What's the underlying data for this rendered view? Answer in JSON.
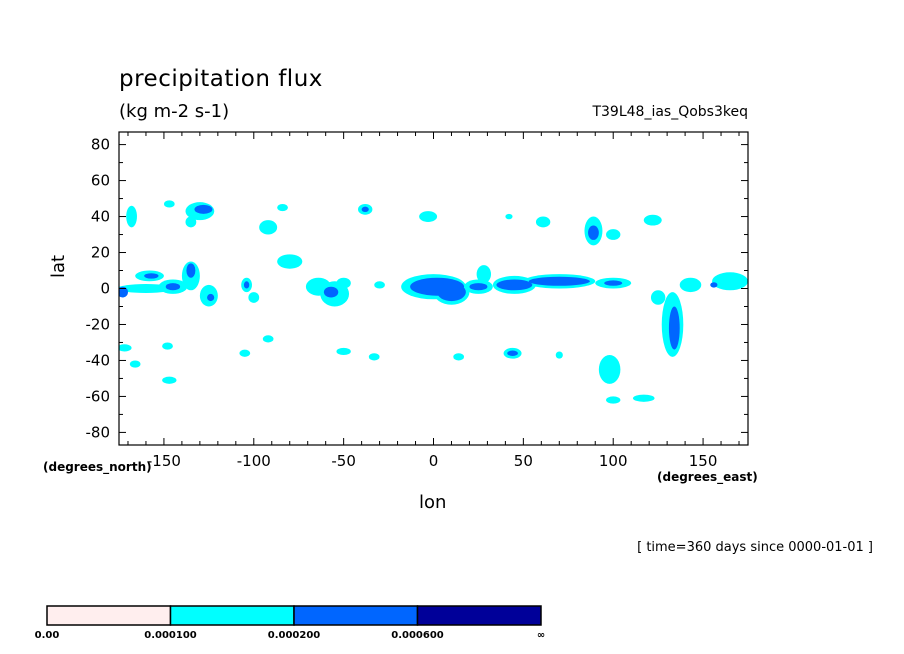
{
  "header": {
    "title": "precipitation flux",
    "units": "(kg m-2 s-1)",
    "model": "T39L48_ias_Qobs3keq",
    "time_note": "[ time=360 days since 0000-01-01 ]"
  },
  "chart_data": {
    "type": "heatmap",
    "title": "precipitation flux",
    "xlabel": "lon",
    "ylabel": "lat",
    "x_unit_label": "(degrees_east)",
    "y_unit_label": "(degrees_north)",
    "xlim": [
      -175,
      175
    ],
    "ylim": [
      -87,
      87
    ],
    "xticks": [
      -150,
      -100,
      -50,
      0,
      50,
      100,
      150
    ],
    "xticklabels": [
      "-150",
      "-100",
      "-50",
      "0",
      "50",
      "100",
      "150"
    ],
    "yticks": [
      80,
      60,
      40,
      20,
      0,
      -20,
      -40,
      -60,
      -80
    ],
    "yticklabels": [
      "80",
      "60",
      "40",
      "20",
      "0",
      "-20",
      "-40",
      "-60",
      "-80"
    ],
    "grid": false,
    "colorbar": {
      "levels": [
        "0.00",
        "0.000100",
        "0.000200",
        "0.000600",
        "∞"
      ],
      "colors": [
        "#ffeeee",
        "#00ffff",
        "#0066ff",
        "#000099"
      ]
    },
    "regions": [
      {
        "level": 1,
        "lon": -168,
        "lat": 40,
        "rx": 3,
        "ry": 6
      },
      {
        "level": 1,
        "lon": -147,
        "lat": 47,
        "rx": 3,
        "ry": 2
      },
      {
        "level": 1,
        "lon": -130,
        "lat": 43,
        "rx": 8,
        "ry": 5
      },
      {
        "level": 2,
        "lon": -128,
        "lat": 44,
        "rx": 5,
        "ry": 2.5
      },
      {
        "level": 1,
        "lon": -135,
        "lat": 37,
        "rx": 3,
        "ry": 3
      },
      {
        "level": 1,
        "lon": -92,
        "lat": 34,
        "rx": 5,
        "ry": 4
      },
      {
        "level": 1,
        "lon": -84,
        "lat": 45,
        "rx": 3,
        "ry": 2
      },
      {
        "level": 1,
        "lon": -38,
        "lat": 44,
        "rx": 4,
        "ry": 3
      },
      {
        "level": 2,
        "lon": -38,
        "lat": 44,
        "rx": 2,
        "ry": 1.5
      },
      {
        "level": 1,
        "lon": -3,
        "lat": 40,
        "rx": 5,
        "ry": 3
      },
      {
        "level": 1,
        "lon": 42,
        "lat": 40,
        "rx": 2,
        "ry": 1.5
      },
      {
        "level": 1,
        "lon": 61,
        "lat": 37,
        "rx": 4,
        "ry": 3
      },
      {
        "level": 1,
        "lon": 89,
        "lat": 32,
        "rx": 5,
        "ry": 8
      },
      {
        "level": 2,
        "lon": 89,
        "lat": 31,
        "rx": 3,
        "ry": 4
      },
      {
        "level": 1,
        "lon": 100,
        "lat": 30,
        "rx": 4,
        "ry": 3
      },
      {
        "level": 1,
        "lon": 122,
        "lat": 38,
        "rx": 5,
        "ry": 3
      },
      {
        "level": 1,
        "lon": -80,
        "lat": 15,
        "rx": 7,
        "ry": 4
      },
      {
        "level": 1,
        "lon": -158,
        "lat": 7,
        "rx": 8,
        "ry": 3
      },
      {
        "level": 2,
        "lon": -157,
        "lat": 7,
        "rx": 4,
        "ry": 1.5
      },
      {
        "level": 1,
        "lon": -160,
        "lat": 0,
        "rx": 16,
        "ry": 2.5
      },
      {
        "level": 2,
        "lon": -173,
        "lat": -2,
        "rx": 3,
        "ry": 3
      },
      {
        "level": 1,
        "lon": -145,
        "lat": 1,
        "rx": 8,
        "ry": 4
      },
      {
        "level": 2,
        "lon": -145,
        "lat": 1,
        "rx": 4,
        "ry": 2
      },
      {
        "level": 1,
        "lon": -135,
        "lat": 7,
        "rx": 5,
        "ry": 8
      },
      {
        "level": 2,
        "lon": -135,
        "lat": 10,
        "rx": 2.5,
        "ry": 4
      },
      {
        "level": 1,
        "lon": -125,
        "lat": -4,
        "rx": 5,
        "ry": 6
      },
      {
        "level": 2,
        "lon": -124,
        "lat": -5,
        "rx": 2,
        "ry": 2
      },
      {
        "level": 1,
        "lon": -104,
        "lat": 2,
        "rx": 3,
        "ry": 4
      },
      {
        "level": 2,
        "lon": -104,
        "lat": 2,
        "rx": 1.5,
        "ry": 2
      },
      {
        "level": 1,
        "lon": -100,
        "lat": -5,
        "rx": 3,
        "ry": 3
      },
      {
        "level": 1,
        "lon": -64,
        "lat": 1,
        "rx": 7,
        "ry": 5
      },
      {
        "level": 1,
        "lon": -55,
        "lat": -3,
        "rx": 8,
        "ry": 7
      },
      {
        "level": 2,
        "lon": -57,
        "lat": -2,
        "rx": 4,
        "ry": 3
      },
      {
        "level": 1,
        "lon": -50,
        "lat": 3,
        "rx": 4,
        "ry": 3
      },
      {
        "level": 1,
        "lon": -30,
        "lat": 2,
        "rx": 3,
        "ry": 2
      },
      {
        "level": 1,
        "lon": 0,
        "lat": 1,
        "rx": 18,
        "ry": 7
      },
      {
        "level": 2,
        "lon": 2,
        "lat": 1,
        "rx": 15,
        "ry": 5
      },
      {
        "level": 1,
        "lon": 10,
        "lat": -2,
        "rx": 10,
        "ry": 7
      },
      {
        "level": 2,
        "lon": 10,
        "lat": -2,
        "rx": 8,
        "ry": 5
      },
      {
        "level": 1,
        "lon": 28,
        "lat": 8,
        "rx": 4,
        "ry": 5
      },
      {
        "level": 1,
        "lon": 25,
        "lat": 1,
        "rx": 8,
        "ry": 4
      },
      {
        "level": 2,
        "lon": 25,
        "lat": 1,
        "rx": 5,
        "ry": 2
      },
      {
        "level": 1,
        "lon": 45,
        "lat": 2,
        "rx": 12,
        "ry": 5
      },
      {
        "level": 2,
        "lon": 45,
        "lat": 2,
        "rx": 10,
        "ry": 3
      },
      {
        "level": 1,
        "lon": 70,
        "lat": 4,
        "rx": 20,
        "ry": 4
      },
      {
        "level": 2,
        "lon": 70,
        "lat": 4,
        "rx": 17,
        "ry": 2.5
      },
      {
        "level": 1,
        "lon": 100,
        "lat": 3,
        "rx": 10,
        "ry": 3
      },
      {
        "level": 2,
        "lon": 100,
        "lat": 3,
        "rx": 5,
        "ry": 1.5
      },
      {
        "level": 1,
        "lon": 125,
        "lat": -5,
        "rx": 4,
        "ry": 4
      },
      {
        "level": 1,
        "lon": 133,
        "lat": -20,
        "rx": 6,
        "ry": 18
      },
      {
        "level": 2,
        "lon": 134,
        "lat": -22,
        "rx": 3,
        "ry": 12
      },
      {
        "level": 1,
        "lon": 143,
        "lat": 2,
        "rx": 6,
        "ry": 4
      },
      {
        "level": 1,
        "lon": 165,
        "lat": 4,
        "rx": 10,
        "ry": 5
      },
      {
        "level": 2,
        "lon": 156,
        "lat": 2,
        "rx": 2,
        "ry": 1.5
      },
      {
        "level": 1,
        "lon": -172,
        "lat": -33,
        "rx": 4,
        "ry": 2
      },
      {
        "level": 1,
        "lon": -166,
        "lat": -42,
        "rx": 3,
        "ry": 2
      },
      {
        "level": 1,
        "lon": -148,
        "lat": -32,
        "rx": 3,
        "ry": 2
      },
      {
        "level": 1,
        "lon": -147,
        "lat": -51,
        "rx": 4,
        "ry": 2
      },
      {
        "level": 1,
        "lon": -105,
        "lat": -36,
        "rx": 3,
        "ry": 2
      },
      {
        "level": 1,
        "lon": -92,
        "lat": -28,
        "rx": 3,
        "ry": 2
      },
      {
        "level": 1,
        "lon": -50,
        "lat": -35,
        "rx": 4,
        "ry": 2
      },
      {
        "level": 1,
        "lon": -33,
        "lat": -38,
        "rx": 3,
        "ry": 2
      },
      {
        "level": 1,
        "lon": 44,
        "lat": -36,
        "rx": 5,
        "ry": 3
      },
      {
        "level": 2,
        "lon": 44,
        "lat": -36,
        "rx": 3,
        "ry": 1.5
      },
      {
        "level": 1,
        "lon": 14,
        "lat": -38,
        "rx": 3,
        "ry": 2
      },
      {
        "level": 1,
        "lon": 70,
        "lat": -37,
        "rx": 2,
        "ry": 2
      },
      {
        "level": 1,
        "lon": 98,
        "lat": -45,
        "rx": 6,
        "ry": 8
      },
      {
        "level": 1,
        "lon": 100,
        "lat": -62,
        "rx": 4,
        "ry": 2
      },
      {
        "level": 1,
        "lon": 117,
        "lat": -61,
        "rx": 6,
        "ry": 2
      }
    ]
  }
}
